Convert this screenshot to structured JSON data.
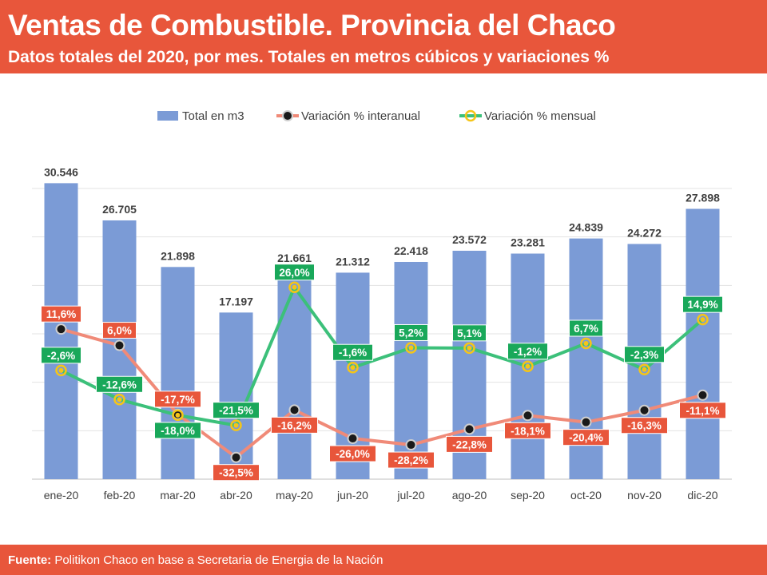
{
  "header": {
    "title": "Ventas de Combustible. Provincia del Chaco",
    "subtitle": "Datos totales del 2020, por mes. Totales en metros cúbicos y variaciones %"
  },
  "footer": {
    "label": "Fuente:",
    "text": " Politikon Chaco en base a Secretaria de Energia de la Nación"
  },
  "colors": {
    "header_bg": "#e8563b",
    "bar": "#7b9bd6",
    "interanual_line": "#f08a78",
    "interanual_label_bg": "#e8563b",
    "mensual_line": "#3cc07a",
    "mensual_label_bg": "#19a85a",
    "marker_fill_dark": "#1a1a1a",
    "marker_fill_yellow": "#f5c518"
  },
  "chart_data": {
    "type": "bar",
    "categories": [
      "ene-20",
      "feb-20",
      "mar-20",
      "abr-20",
      "may-20",
      "jun-20",
      "jul-20",
      "ago-20",
      "sep-20",
      "oct-20",
      "nov-20",
      "dic-20"
    ],
    "series": [
      {
        "name": "Total en m3",
        "type": "bar",
        "axis": "left",
        "values": [
          30546,
          26705,
          21898,
          17197,
          21661,
          21312,
          22418,
          23572,
          23281,
          24839,
          24272,
          27898
        ],
        "labels": [
          "30.546",
          "26.705",
          "21.898",
          "17.197",
          "21.661",
          "21.312",
          "22.418",
          "23.572",
          "23.281",
          "24.839",
          "24.272",
          "27.898"
        ]
      },
      {
        "name": "Variación % interanual",
        "type": "line",
        "axis": "right",
        "values": [
          11.6,
          6.0,
          -17.7,
          -32.5,
          -16.2,
          -26.0,
          -28.2,
          -22.8,
          -18.1,
          -20.4,
          -16.3,
          -11.1
        ],
        "labels": [
          "11,6%",
          "6,0%",
          "-17,7%",
          "-32,5%",
          "-16,2%",
          "-26,0%",
          "-28,2%",
          "-22,8%",
          "-18,1%",
          "-20,4%",
          "-16,3%",
          "-11,1%"
        ]
      },
      {
        "name": "Variación % mensual",
        "type": "line",
        "axis": "right",
        "values": [
          -2.6,
          -12.6,
          -18.0,
          -21.5,
          26.0,
          -1.6,
          5.2,
          5.1,
          -1.2,
          6.7,
          -2.3,
          14.9
        ],
        "labels": [
          "-2,6%",
          "-12,6%",
          "-18,0%",
          "-21,5%",
          "26,0%",
          "-1,6%",
          "5,2%",
          "5,1%",
          "-1,2%",
          "6,7%",
          "-2,3%",
          "14,9%"
        ]
      }
    ],
    "ylim": [
      0,
      30000
    ],
    "y2lim": [
      -40,
      60
    ],
    "grid": true,
    "legend": "top-center",
    "xlabel": "",
    "ylabel": ""
  }
}
